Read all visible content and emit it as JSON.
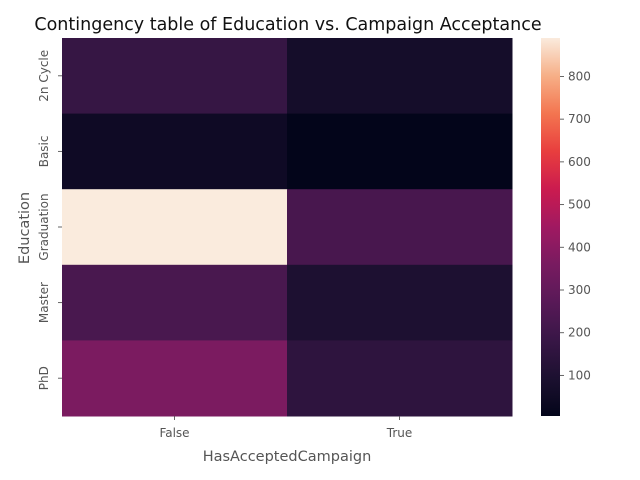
{
  "chart_data": {
    "type": "heatmap",
    "title": "Contingency table of Education vs. Campaign Acceptance",
    "xlabel": "HasAcceptedCampaign",
    "ylabel": "Education",
    "x_categories": [
      "False",
      "True"
    ],
    "y_categories": [
      "2n Cycle",
      "Basic",
      "Graduation",
      "Master",
      "PhD"
    ],
    "values": [
      [
        175,
        68
      ],
      [
        48,
        5
      ],
      [
        890,
        225
      ],
      [
        230,
        97
      ],
      [
        365,
        150
      ]
    ],
    "colorbar": {
      "min": 5,
      "max": 890,
      "ticks": [
        100,
        200,
        300,
        400,
        500,
        600,
        700,
        800
      ],
      "colormap": "rocket"
    }
  }
}
